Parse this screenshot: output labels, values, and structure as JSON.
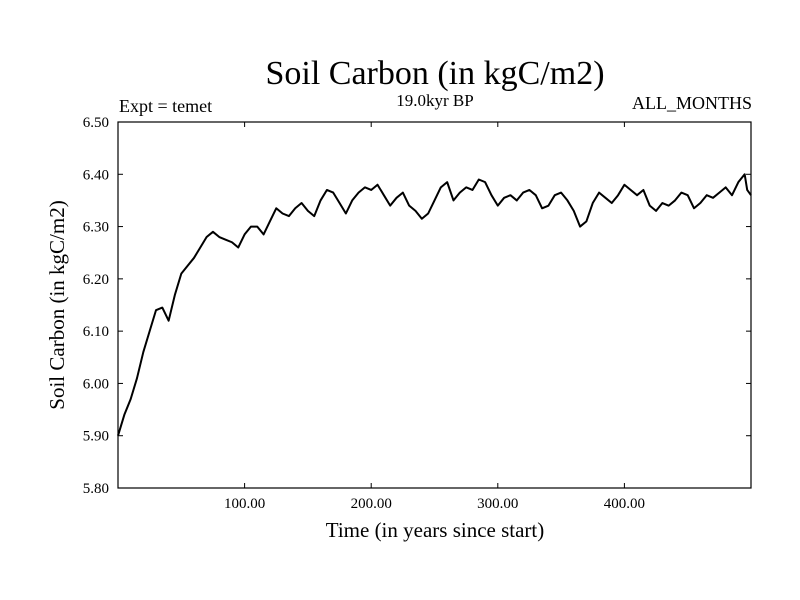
{
  "chart_data": {
    "type": "line",
    "title": "Soil Carbon (in kgC/m2)",
    "subtitle": "19.0kyr BP",
    "left_note": "Expt = temet",
    "right_note": "ALL_MONTHS",
    "xlabel": "Time (in years since start)",
    "ylabel": "Soil Carbon (in kgC/m2)",
    "xlim": [
      0,
      500
    ],
    "ylim": [
      5.8,
      6.5
    ],
    "x_ticks": [
      100,
      200,
      300,
      400
    ],
    "x_tick_labels": [
      "100.00",
      "200.00",
      "300.00",
      "400.00"
    ],
    "y_ticks": [
      5.8,
      5.9,
      6.0,
      6.1,
      6.2,
      6.3,
      6.4,
      6.5
    ],
    "y_tick_labels": [
      "5.80",
      "5.90",
      "6.00",
      "6.10",
      "6.20",
      "6.30",
      "6.40",
      "6.50"
    ],
    "grid": false,
    "series": [
      {
        "name": "Soil Carbon",
        "color": "#000000",
        "x": [
          0,
          5,
          10,
          15,
          20,
          25,
          30,
          35,
          40,
          45,
          50,
          55,
          60,
          65,
          70,
          75,
          80,
          85,
          90,
          95,
          100,
          105,
          110,
          115,
          120,
          125,
          130,
          135,
          140,
          145,
          150,
          155,
          160,
          165,
          170,
          175,
          180,
          185,
          190,
          195,
          200,
          205,
          210,
          215,
          220,
          225,
          230,
          235,
          240,
          245,
          250,
          255,
          260,
          265,
          270,
          275,
          280,
          285,
          290,
          295,
          300,
          305,
          310,
          315,
          320,
          325,
          330,
          335,
          340,
          345,
          350,
          355,
          360,
          365,
          370,
          375,
          380,
          385,
          390,
          395,
          400,
          405,
          410,
          415,
          420,
          425,
          430,
          435,
          440,
          445,
          450,
          455,
          460,
          465,
          470,
          475,
          480,
          485,
          490,
          495,
          497,
          500
        ],
        "values": [
          5.9,
          5.94,
          5.97,
          6.01,
          6.06,
          6.1,
          6.14,
          6.145,
          6.12,
          6.17,
          6.21,
          6.225,
          6.24,
          6.26,
          6.28,
          6.29,
          6.28,
          6.275,
          6.27,
          6.26,
          6.285,
          6.3,
          6.3,
          6.285,
          6.31,
          6.335,
          6.325,
          6.32,
          6.335,
          6.345,
          6.33,
          6.32,
          6.35,
          6.37,
          6.365,
          6.345,
          6.325,
          6.35,
          6.365,
          6.375,
          6.37,
          6.38,
          6.36,
          6.34,
          6.355,
          6.365,
          6.34,
          6.33,
          6.315,
          6.325,
          6.35,
          6.375,
          6.385,
          6.35,
          6.365,
          6.375,
          6.37,
          6.39,
          6.385,
          6.36,
          6.34,
          6.355,
          6.36,
          6.35,
          6.365,
          6.37,
          6.36,
          6.335,
          6.34,
          6.36,
          6.365,
          6.35,
          6.33,
          6.3,
          6.31,
          6.345,
          6.365,
          6.355,
          6.345,
          6.36,
          6.38,
          6.37,
          6.36,
          6.37,
          6.34,
          6.33,
          6.345,
          6.34,
          6.35,
          6.365,
          6.36,
          6.335,
          6.345,
          6.36,
          6.355,
          6.365,
          6.375,
          6.36,
          6.385,
          6.4,
          6.37,
          6.36
        ]
      }
    ]
  }
}
